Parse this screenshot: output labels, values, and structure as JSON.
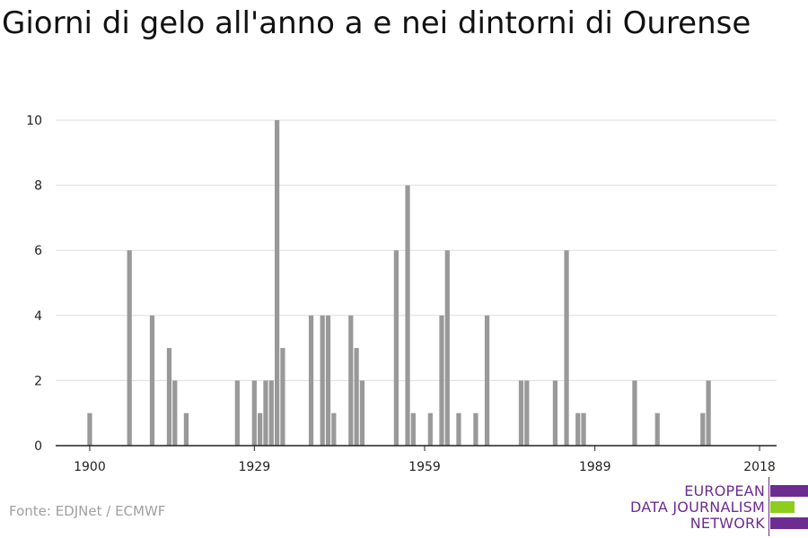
{
  "title": "Giorni di gelo all'anno a e nei dintorni di Ourense",
  "source": "Fonte: EDJNet / ECMWF",
  "logo": {
    "line1": "EUROPEAN",
    "line2": "DATA JOURNALISM",
    "line3": "NETWORK",
    "colors": {
      "purple": "#6d2c8f",
      "green": "#8ccd1d"
    }
  },
  "colors": {
    "bar": "#999999",
    "grid": "#dddddd",
    "axis": "#222222",
    "text": "#222222"
  },
  "chart_data": {
    "type": "bar",
    "title": "Giorni di gelo all'anno a e nei dintorni di Ourense",
    "xlabel": "",
    "ylabel": "",
    "xlim": [
      1894,
      2021
    ],
    "ylim": [
      0,
      10
    ],
    "xticks": [
      "1900",
      "1929",
      "1959",
      "1989",
      "2018"
    ],
    "yticks": [
      "0",
      "2",
      "4",
      "6",
      "8",
      "10"
    ],
    "grid": true,
    "series": [
      {
        "x": [
          1900,
          1907,
          1911,
          1914,
          1915,
          1917,
          1926,
          1929,
          1930,
          1931,
          1932,
          1933,
          1934,
          1939,
          1941,
          1942,
          1943,
          1946,
          1947,
          1948,
          1954,
          1956,
          1957,
          1960,
          1962,
          1963,
          1965,
          1968,
          1970,
          1976,
          1977,
          1982,
          1984,
          1986,
          1987,
          1996,
          2000,
          2008,
          2009
        ],
        "values": [
          1,
          6,
          4,
          3,
          2,
          1,
          2,
          2,
          1,
          2,
          2,
          10,
          3,
          4,
          4,
          4,
          1,
          4,
          3,
          2,
          6,
          8,
          1,
          1,
          4,
          6,
          1,
          1,
          4,
          2,
          2,
          2,
          6,
          1,
          1,
          2,
          1,
          1,
          2
        ]
      }
    ]
  }
}
